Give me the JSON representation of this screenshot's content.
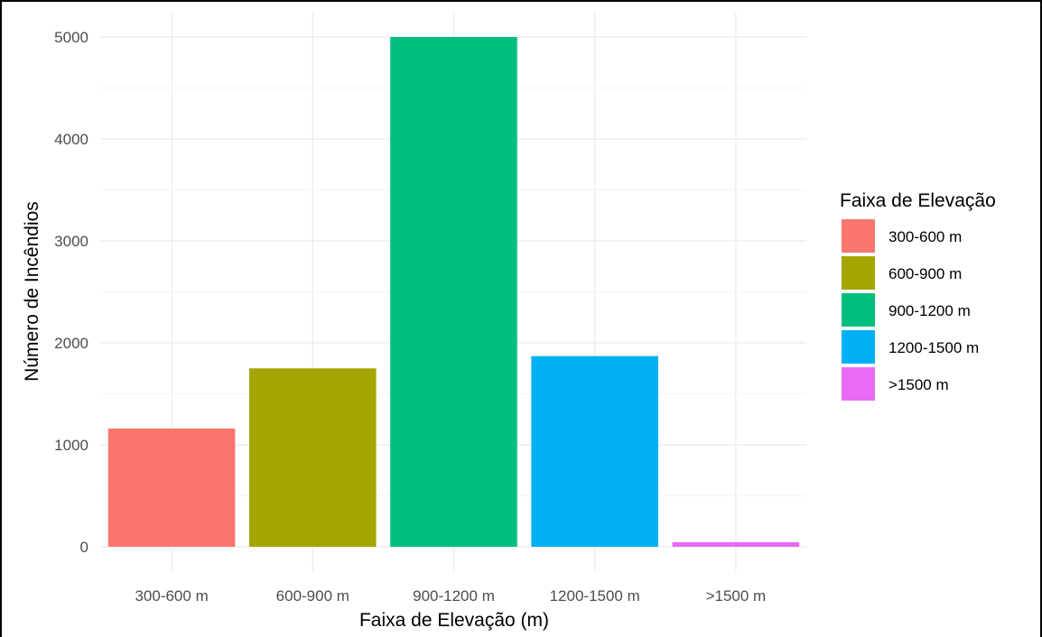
{
  "chart_data": {
    "type": "bar",
    "categories": [
      "300-600 m",
      "600-900 m",
      "900-1200 m",
      "1200-1500 m",
      ">1500 m"
    ],
    "values": [
      1160,
      1750,
      5000,
      1870,
      45
    ],
    "colors": [
      "#F8766D",
      "#A3A500",
      "#00BF7D",
      "#00B0F6",
      "#E76BF3"
    ],
    "xlabel": "Faixa de Elevação (m)",
    "ylabel": "Número de Incêndios",
    "ylim": [
      0,
      5000
    ],
    "yticks": [
      0,
      1000,
      2000,
      3000,
      4000,
      5000
    ],
    "grid": true,
    "legend": {
      "title": "Faixa de Elevação",
      "position": "right",
      "items": [
        "300-600 m",
        "600-900 m",
        "900-1200 m",
        "1200-1500 m",
        ">1500 m"
      ]
    }
  }
}
